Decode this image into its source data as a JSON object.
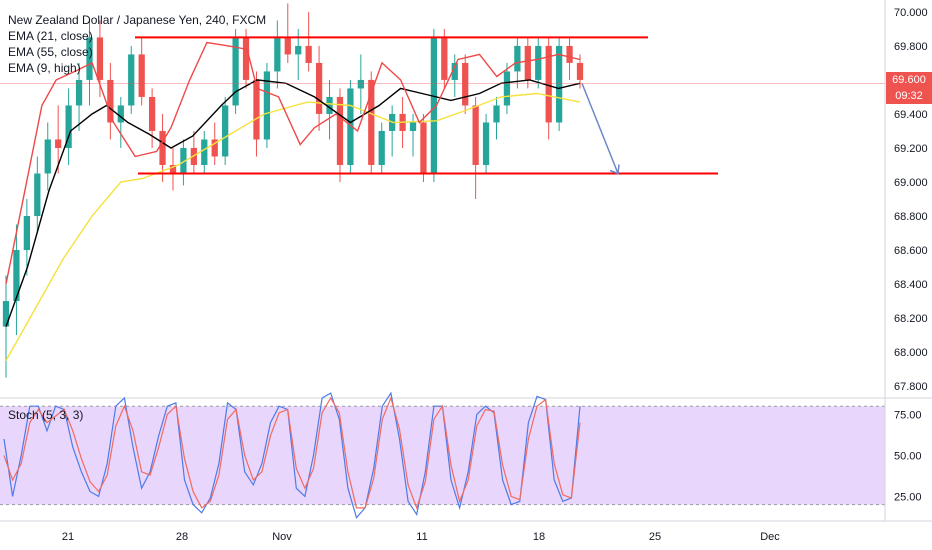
{
  "chart_data": {
    "type": "candlestick",
    "title": "New Zealand Dollar / Japanese Yen, 240, FXCM",
    "indicators": [
      "EMA (21, close)",
      "EMA (55, close)",
      "EMA (9, high)"
    ],
    "y_ticks": [
      "70.000",
      "69.800",
      "69.600",
      "69.400",
      "69.200",
      "69.000",
      "68.800",
      "68.600",
      "68.400",
      "68.200",
      "68.000",
      "67.800"
    ],
    "ylim": [
      67.73,
      70.07
    ],
    "x_ticks": [
      "21",
      "28",
      "Nov",
      "11",
      "18",
      "25",
      "Dec"
    ],
    "last_price": "69.600",
    "countdown": "09:32",
    "colors": {
      "up": "#26a69a",
      "down": "#ef5350",
      "ema9": "#ef4848",
      "ema21": "#000000",
      "ema55": "#f5e23c",
      "range_lines": "#ff0000",
      "arrow": "#6f87c9",
      "price_badge": "#ef5350",
      "stoch_k": "#4c7be8",
      "stoch_d": "#f26a60",
      "stoch_band": "#e1c8fb"
    },
    "resistance": 69.85,
    "support": 69.05,
    "projection": {
      "from": 69.58,
      "to": 69.05
    },
    "ema_curves": {
      "ema55": [
        [
          0,
          67.95
        ],
        [
          20,
          68.25
        ],
        [
          40,
          68.55
        ],
        [
          60,
          68.8
        ],
        [
          80,
          69.0
        ],
        [
          95,
          69.02
        ],
        [
          120,
          69.1
        ],
        [
          150,
          69.25
        ],
        [
          180,
          69.4
        ],
        [
          210,
          69.47
        ],
        [
          240,
          69.45
        ],
        [
          270,
          69.35
        ],
        [
          300,
          69.36
        ],
        [
          320,
          69.42
        ],
        [
          345,
          69.5
        ],
        [
          370,
          69.52
        ],
        [
          400,
          69.47
        ]
      ],
      "ema21": [
        [
          0,
          68.15
        ],
        [
          15,
          68.5
        ],
        [
          30,
          68.95
        ],
        [
          45,
          69.3
        ],
        [
          60,
          69.4
        ],
        [
          70,
          69.45
        ],
        [
          85,
          69.35
        ],
        [
          100,
          69.28
        ],
        [
          115,
          69.2
        ],
        [
          130,
          69.27
        ],
        [
          150,
          69.45
        ],
        [
          160,
          69.53
        ],
        [
          175,
          69.6
        ],
        [
          195,
          69.58
        ],
        [
          215,
          69.5
        ],
        [
          240,
          69.35
        ],
        [
          260,
          69.45
        ],
        [
          275,
          69.55
        ],
        [
          290,
          69.52
        ],
        [
          310,
          69.48
        ],
        [
          330,
          69.52
        ],
        [
          345,
          69.58
        ],
        [
          365,
          69.6
        ],
        [
          385,
          69.55
        ],
        [
          400,
          69.58
        ]
      ],
      "ema9": [
        [
          0,
          68.4
        ],
        [
          12,
          68.9
        ],
        [
          25,
          69.45
        ],
        [
          35,
          69.6
        ],
        [
          48,
          69.65
        ],
        [
          60,
          69.7
        ],
        [
          75,
          69.35
        ],
        [
          90,
          69.15
        ],
        [
          105,
          69.18
        ],
        [
          115,
          69.32
        ],
        [
          128,
          69.6
        ],
        [
          140,
          69.82
        ],
        [
          155,
          69.8
        ],
        [
          168,
          69.78
        ],
        [
          175,
          69.55
        ],
        [
          190,
          69.5
        ],
        [
          205,
          69.22
        ],
        [
          215,
          69.32
        ],
        [
          230,
          69.4
        ],
        [
          245,
          69.3
        ],
        [
          262,
          69.7
        ],
        [
          275,
          69.6
        ],
        [
          288,
          69.35
        ],
        [
          300,
          69.45
        ],
        [
          315,
          69.72
        ],
        [
          330,
          69.75
        ],
        [
          342,
          69.62
        ],
        [
          355,
          69.7
        ],
        [
          370,
          69.72
        ],
        [
          385,
          69.75
        ],
        [
          400,
          69.72
        ]
      ]
    },
    "stoch": {
      "title": "Stoch (5, 3, 3)",
      "y_ticks": [
        "75.00",
        "50.00",
        "25.00"
      ],
      "ylim": [
        10,
        85
      ],
      "band": [
        20,
        80
      ],
      "series": [
        {
          "name": "K",
          "values": [
            60,
            25,
            50,
            80,
            80,
            65,
            80,
            78,
            55,
            40,
            28,
            25,
            45,
            80,
            85,
            55,
            30,
            40,
            62,
            80,
            82,
            35,
            20,
            15,
            24,
            45,
            82,
            78,
            40,
            32,
            45,
            70,
            80,
            78,
            30,
            25,
            50,
            85,
            88,
            72,
            30,
            12,
            18,
            42,
            80,
            88,
            60,
            22,
            14,
            40,
            80,
            80,
            35,
            18,
            40,
            75,
            80,
            76,
            35,
            20,
            22,
            70,
            86,
            84,
            35,
            22,
            24,
            80
          ]
        },
        {
          "name": "D",
          "values": [
            50,
            35,
            45,
            70,
            78,
            70,
            74,
            78,
            65,
            48,
            34,
            28,
            38,
            68,
            80,
            65,
            40,
            38,
            55,
            75,
            80,
            48,
            28,
            18,
            22,
            38,
            72,
            78,
            50,
            35,
            40,
            62,
            76,
            78,
            42,
            30,
            42,
            76,
            85,
            76,
            40,
            18,
            18,
            36,
            72,
            85,
            66,
            32,
            18,
            34,
            72,
            80,
            44,
            22,
            35,
            68,
            78,
            77,
            44,
            25,
            23,
            60,
            80,
            84,
            45,
            26,
            24,
            70
          ]
        }
      ]
    },
    "candles": [
      {
        "o": 68.15,
        "h": 68.45,
        "l": 67.85,
        "c": 68.3
      },
      {
        "o": 68.3,
        "h": 68.75,
        "l": 68.1,
        "c": 68.6
      },
      {
        "o": 68.6,
        "h": 68.9,
        "l": 68.45,
        "c": 68.8
      },
      {
        "o": 68.8,
        "h": 69.15,
        "l": 68.7,
        "c": 69.05
      },
      {
        "o": 69.05,
        "h": 69.35,
        "l": 68.95,
        "c": 69.25
      },
      {
        "o": 69.25,
        "h": 69.45,
        "l": 69.05,
        "c": 69.2
      },
      {
        "o": 69.2,
        "h": 69.55,
        "l": 69.1,
        "c": 69.45
      },
      {
        "o": 69.45,
        "h": 69.7,
        "l": 69.3,
        "c": 69.6
      },
      {
        "o": 69.6,
        "h": 69.95,
        "l": 69.45,
        "c": 69.85
      },
      {
        "o": 69.85,
        "h": 69.95,
        "l": 69.5,
        "c": 69.6
      },
      {
        "o": 69.6,
        "h": 69.7,
        "l": 69.25,
        "c": 69.35
      },
      {
        "o": 69.35,
        "h": 69.5,
        "l": 69.2,
        "c": 69.45
      },
      {
        "o": 69.45,
        "h": 69.8,
        "l": 69.4,
        "c": 69.75
      },
      {
        "o": 69.75,
        "h": 69.85,
        "l": 69.45,
        "c": 69.5
      },
      {
        "o": 69.5,
        "h": 69.55,
        "l": 69.2,
        "c": 69.3
      },
      {
        "o": 69.3,
        "h": 69.4,
        "l": 69.0,
        "c": 69.1
      },
      {
        "o": 69.1,
        "h": 69.2,
        "l": 68.95,
        "c": 69.05
      },
      {
        "o": 69.05,
        "h": 69.25,
        "l": 68.98,
        "c": 69.2
      },
      {
        "o": 69.2,
        "h": 69.3,
        "l": 69.05,
        "c": 69.1
      },
      {
        "o": 69.1,
        "h": 69.3,
        "l": 69.05,
        "c": 69.25
      },
      {
        "o": 69.25,
        "h": 69.35,
        "l": 69.1,
        "c": 69.15
      },
      {
        "o": 69.15,
        "h": 69.5,
        "l": 69.1,
        "c": 69.45
      },
      {
        "o": 69.45,
        "h": 69.9,
        "l": 69.4,
        "c": 69.85
      },
      {
        "o": 69.85,
        "h": 69.9,
        "l": 69.55,
        "c": 69.6
      },
      {
        "o": 69.6,
        "h": 69.65,
        "l": 69.15,
        "c": 69.25
      },
      {
        "o": 69.25,
        "h": 69.7,
        "l": 69.2,
        "c": 69.65
      },
      {
        "o": 69.65,
        "h": 69.95,
        "l": 69.55,
        "c": 69.85
      },
      {
        "o": 69.85,
        "h": 70.05,
        "l": 69.7,
        "c": 69.75
      },
      {
        "o": 69.75,
        "h": 69.9,
        "l": 69.6,
        "c": 69.8
      },
      {
        "o": 69.8,
        "h": 70.0,
        "l": 69.65,
        "c": 69.7
      },
      {
        "o": 69.7,
        "h": 69.8,
        "l": 69.3,
        "c": 69.4
      },
      {
        "o": 69.4,
        "h": 69.6,
        "l": 69.25,
        "c": 69.5
      },
      {
        "o": 69.5,
        "h": 69.55,
        "l": 69.0,
        "c": 69.1
      },
      {
        "o": 69.1,
        "h": 69.6,
        "l": 69.05,
        "c": 69.55
      },
      {
        "o": 69.55,
        "h": 69.75,
        "l": 69.4,
        "c": 69.6
      },
      {
        "o": 69.6,
        "h": 69.65,
        "l": 69.05,
        "c": 69.1
      },
      {
        "o": 69.1,
        "h": 69.35,
        "l": 69.05,
        "c": 69.3
      },
      {
        "o": 69.3,
        "h": 69.45,
        "l": 69.15,
        "c": 69.4
      },
      {
        "o": 69.4,
        "h": 69.5,
        "l": 69.2,
        "c": 69.3
      },
      {
        "o": 69.3,
        "h": 69.4,
        "l": 69.15,
        "c": 69.35
      },
      {
        "o": 69.35,
        "h": 69.4,
        "l": 69.0,
        "c": 69.05
      },
      {
        "o": 69.05,
        "h": 69.9,
        "l": 69.0,
        "c": 69.85
      },
      {
        "o": 69.85,
        "h": 69.9,
        "l": 69.55,
        "c": 69.6
      },
      {
        "o": 69.6,
        "h": 69.75,
        "l": 69.5,
        "c": 69.7
      },
      {
        "o": 69.7,
        "h": 69.75,
        "l": 69.4,
        "c": 69.45
      },
      {
        "o": 69.45,
        "h": 69.5,
        "l": 68.9,
        "c": 69.1
      },
      {
        "o": 69.1,
        "h": 69.4,
        "l": 69.05,
        "c": 69.35
      },
      {
        "o": 69.35,
        "h": 69.5,
        "l": 69.25,
        "c": 69.45
      },
      {
        "o": 69.45,
        "h": 69.7,
        "l": 69.4,
        "c": 69.65
      },
      {
        "o": 69.65,
        "h": 69.85,
        "l": 69.55,
        "c": 69.8
      },
      {
        "o": 69.8,
        "h": 69.85,
        "l": 69.55,
        "c": 69.6
      },
      {
        "o": 69.6,
        "h": 69.85,
        "l": 69.55,
        "c": 69.8
      },
      {
        "o": 69.8,
        "h": 69.85,
        "l": 69.25,
        "c": 69.35
      },
      {
        "o": 69.35,
        "h": 69.85,
        "l": 69.3,
        "c": 69.8
      },
      {
        "o": 69.8,
        "h": 69.85,
        "l": 69.6,
        "c": 69.7
      },
      {
        "o": 69.7,
        "h": 69.75,
        "l": 69.55,
        "c": 69.6
      }
    ]
  }
}
